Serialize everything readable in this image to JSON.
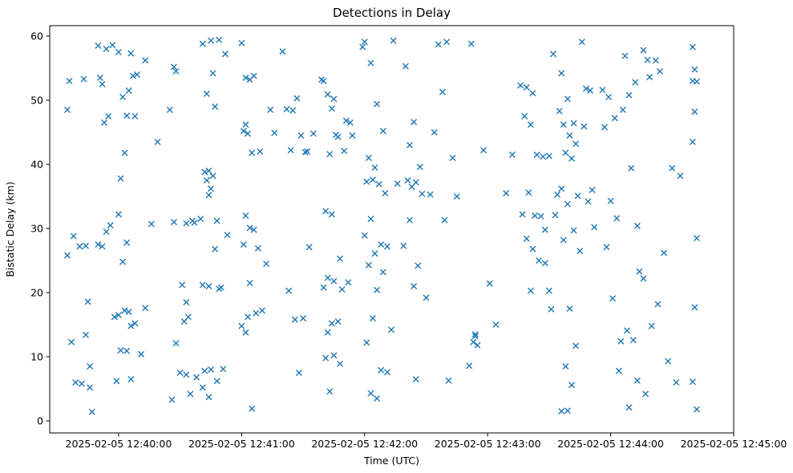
{
  "chart_data": {
    "type": "scatter",
    "title": "Detections in Delay",
    "xlabel": "Time (UTC)",
    "ylabel": "Bistatic Delay (km)",
    "marker": "x",
    "marker_color": "#1f77b4",
    "grid": false,
    "legend": "none",
    "x_axis_unit": "seconds relative to 2025-02-05 12:40:00 UTC",
    "x_lim_seconds": [
      -33.6,
      300
    ],
    "y_lim": [
      -1.875,
      61.625
    ],
    "x_ticks": [
      {
        "t": 0,
        "label": "2025-02-05 12:40:00"
      },
      {
        "t": 60,
        "label": "2025-02-05 12:41:00"
      },
      {
        "t": 120,
        "label": "2025-02-05 12:42:00"
      },
      {
        "t": 180,
        "label": "2025-02-05 12:43:00"
      },
      {
        "t": 240,
        "label": "2025-02-05 12:44:00"
      },
      {
        "t": 300,
        "label": "2025-02-05 12:45:00"
      }
    ],
    "y_ticks": [
      0,
      10,
      20,
      30,
      40,
      50,
      60
    ],
    "points": [
      [
        -25,
        48.5
      ],
      [
        -24,
        53
      ],
      [
        -25,
        25.8
      ],
      [
        -22,
        28.8
      ],
      [
        -23,
        12.3
      ],
      [
        -21,
        6
      ],
      [
        -17,
        53.3
      ],
      [
        -18,
        5.8
      ],
      [
        -15,
        18.6
      ],
      [
        -16,
        27.3
      ],
      [
        -16,
        13.4
      ],
      [
        -19,
        27.2
      ],
      [
        -14,
        8.5
      ],
      [
        -13,
        1.4
      ],
      [
        -14,
        5.2
      ],
      [
        -10,
        58.5
      ],
      [
        -6,
        58
      ],
      [
        -3,
        58.6
      ],
      [
        -8,
        52.5
      ],
      [
        -9,
        53.5
      ],
      [
        0,
        57.5
      ],
      [
        6,
        57.3
      ],
      [
        -7,
        46.5
      ],
      [
        -5,
        47.5
      ],
      [
        2,
        50.5
      ],
      [
        5,
        51.5
      ],
      [
        7,
        53.8
      ],
      [
        9,
        54
      ],
      [
        4,
        47.6
      ],
      [
        3,
        41.8
      ],
      [
        1,
        37.8
      ],
      [
        0,
        32.2
      ],
      [
        -4,
        30.5
      ],
      [
        -6,
        29.5
      ],
      [
        -10,
        27.5
      ],
      [
        -8,
        27.2
      ],
      [
        2,
        24.8
      ],
      [
        -2,
        16.2
      ],
      [
        0,
        16.5
      ],
      [
        3,
        17.2
      ],
      [
        5,
        17
      ],
      [
        6,
        14.8
      ],
      [
        8,
        15.2
      ],
      [
        1,
        11
      ],
      [
        4,
        10.9
      ],
      [
        -1,
        6.2
      ],
      [
        6,
        6.5
      ],
      [
        11,
        10.4
      ],
      [
        13,
        17.6
      ],
      [
        16,
        30.7
      ],
      [
        19,
        43.5
      ],
      [
        13,
        56.2
      ],
      [
        4,
        27.8
      ],
      [
        8,
        47.5
      ],
      [
        27,
        55.2
      ],
      [
        28,
        54.5
      ],
      [
        25,
        48.5
      ],
      [
        27,
        31
      ],
      [
        33,
        30.8
      ],
      [
        36,
        31.2
      ],
      [
        31,
        21.2
      ],
      [
        33,
        18.5
      ],
      [
        34,
        16.2
      ],
      [
        32,
        15.5
      ],
      [
        28,
        12.1
      ],
      [
        30,
        7.5
      ],
      [
        33,
        7.2
      ],
      [
        26,
        3.3
      ],
      [
        35,
        4.2
      ],
      [
        38,
        6.8
      ],
      [
        37,
        30.9
      ],
      [
        41,
        58.8
      ],
      [
        45,
        59.3
      ],
      [
        49,
        59.4
      ],
      [
        52,
        57.2
      ],
      [
        46,
        54.2
      ],
      [
        43,
        51
      ],
      [
        47,
        49
      ],
      [
        42,
        38.8
      ],
      [
        44,
        39
      ],
      [
        46,
        38.2
      ],
      [
        43,
        37.5
      ],
      [
        45,
        36.2
      ],
      [
        44,
        35.2
      ],
      [
        40,
        31.5
      ],
      [
        48,
        31.2
      ],
      [
        47,
        26.8
      ],
      [
        41,
        21.2
      ],
      [
        44,
        21
      ],
      [
        49,
        20.6
      ],
      [
        42,
        7.8
      ],
      [
        45,
        8
      ],
      [
        48,
        6.2
      ],
      [
        41,
        5.2
      ],
      [
        44,
        3.7
      ],
      [
        51,
        8.1
      ],
      [
        50,
        20.8
      ],
      [
        53,
        29
      ],
      [
        60,
        58.9
      ],
      [
        62,
        53.5
      ],
      [
        64,
        53.2
      ],
      [
        66,
        53.8
      ],
      [
        62,
        46.2
      ],
      [
        61,
        45.2
      ],
      [
        63,
        44.8
      ],
      [
        65,
        41.8
      ],
      [
        69,
        42
      ],
      [
        62,
        32
      ],
      [
        64,
        30.1
      ],
      [
        66,
        29.8
      ],
      [
        61,
        27.5
      ],
      [
        68,
        26.9
      ],
      [
        72,
        24.5
      ],
      [
        64,
        21.5
      ],
      [
        67,
        16.8
      ],
      [
        63,
        16.2
      ],
      [
        60,
        14.8
      ],
      [
        62,
        13.8
      ],
      [
        65,
        1.9
      ],
      [
        70,
        17.2
      ],
      [
        74,
        48.5
      ],
      [
        76,
        44.9
      ],
      [
        80,
        57.6
      ],
      [
        87,
        50.3
      ],
      [
        82,
        48.6
      ],
      [
        85,
        48.4
      ],
      [
        89,
        44.5
      ],
      [
        84,
        42.2
      ],
      [
        91,
        41.9
      ],
      [
        83,
        20.3
      ],
      [
        86,
        15.8
      ],
      [
        90,
        16
      ],
      [
        93,
        27.1
      ],
      [
        88,
        7.5
      ],
      [
        95,
        44.8
      ],
      [
        92,
        42
      ],
      [
        100,
        53
      ],
      [
        102,
        50.9
      ],
      [
        105,
        50.2
      ],
      [
        104,
        48.7
      ],
      [
        107,
        44.3
      ],
      [
        110,
        42.1
      ],
      [
        103,
        41.6
      ],
      [
        101,
        32.7
      ],
      [
        104,
        32.2
      ],
      [
        108,
        25.3
      ],
      [
        102,
        22.3
      ],
      [
        105,
        21.8
      ],
      [
        100,
        20.8
      ],
      [
        109,
        20.5
      ],
      [
        104,
        15.2
      ],
      [
        107,
        15.5
      ],
      [
        102,
        13.8
      ],
      [
        105,
        10.2
      ],
      [
        101,
        9.8
      ],
      [
        108,
        8.9
      ],
      [
        103,
        4.6
      ],
      [
        112,
        21.6
      ],
      [
        111,
        46.8
      ],
      [
        113,
        46.5
      ],
      [
        106,
        44.6
      ],
      [
        114,
        44.5
      ],
      [
        99,
        53.2
      ],
      [
        120,
        59.1
      ],
      [
        134,
        59.3
      ],
      [
        123,
        55.8
      ],
      [
        126,
        49.4
      ],
      [
        129,
        45.2
      ],
      [
        122,
        41
      ],
      [
        125,
        39.5
      ],
      [
        121,
        37.3
      ],
      [
        124,
        37.6
      ],
      [
        127,
        36.9
      ],
      [
        123,
        31.5
      ],
      [
        120,
        28.9
      ],
      [
        128,
        27.5
      ],
      [
        131,
        27.2
      ],
      [
        125,
        26.1
      ],
      [
        122,
        24.3
      ],
      [
        129,
        23.2
      ],
      [
        126,
        20.4
      ],
      [
        124,
        16
      ],
      [
        121,
        12.2
      ],
      [
        133,
        14.2
      ],
      [
        128,
        7.9
      ],
      [
        131,
        7.6
      ],
      [
        123,
        4.3
      ],
      [
        126,
        3.5
      ],
      [
        130,
        35.5
      ],
      [
        136,
        37
      ],
      [
        119,
        58.3
      ],
      [
        140,
        55.3
      ],
      [
        144,
        46.6
      ],
      [
        142,
        43
      ],
      [
        147,
        39.6
      ],
      [
        141,
        37.5
      ],
      [
        145,
        37.2
      ],
      [
        143,
        36.5
      ],
      [
        148,
        35.4
      ],
      [
        142,
        31.3
      ],
      [
        139,
        27.3
      ],
      [
        146,
        24.2
      ],
      [
        144,
        21
      ],
      [
        150,
        19.2
      ],
      [
        145,
        6.5
      ],
      [
        152,
        35.3
      ],
      [
        154,
        45
      ],
      [
        156,
        58.7
      ],
      [
        160,
        59.1
      ],
      [
        158,
        51.3
      ],
      [
        163,
        41
      ],
      [
        159,
        31.3
      ],
      [
        161,
        6.3
      ],
      [
        165,
        35
      ],
      [
        172,
        58.8
      ],
      [
        174,
        13.5
      ],
      [
        174,
        13.2
      ],
      [
        173,
        12.3
      ],
      [
        175,
        11.8
      ],
      [
        171,
        8.6
      ],
      [
        178,
        42.2
      ],
      [
        181,
        21.4
      ],
      [
        184,
        15
      ],
      [
        189,
        35.5
      ],
      [
        192,
        41.5
      ],
      [
        196,
        52.3
      ],
      [
        199,
        52
      ],
      [
        202,
        51.1
      ],
      [
        198,
        47.5
      ],
      [
        201,
        46.2
      ],
      [
        204,
        41.5
      ],
      [
        207,
        41.2
      ],
      [
        200,
        35.6
      ],
      [
        197,
        32.2
      ],
      [
        203,
        32
      ],
      [
        206,
        31.9
      ],
      [
        199,
        28.4
      ],
      [
        202,
        26.8
      ],
      [
        205,
        25
      ],
      [
        208,
        24.6
      ],
      [
        201,
        20.3
      ],
      [
        212,
        57.2
      ],
      [
        215,
        48.3
      ],
      [
        210,
        41.3
      ],
      [
        208,
        29.8
      ],
      [
        213,
        32.1
      ],
      [
        214,
        35.3
      ],
      [
        210,
        20.3
      ],
      [
        211,
        17.4
      ],
      [
        216,
        54.2
      ],
      [
        219,
        50.2
      ],
      [
        222,
        46.4
      ],
      [
        217,
        46.2
      ],
      [
        220,
        44.5
      ],
      [
        223,
        43.2
      ],
      [
        218,
        41.8
      ],
      [
        221,
        40.9
      ],
      [
        216,
        36.2
      ],
      [
        224,
        35.1
      ],
      [
        219,
        33.8
      ],
      [
        222,
        29.7
      ],
      [
        217,
        28.2
      ],
      [
        220,
        17.5
      ],
      [
        223,
        11.7
      ],
      [
        218,
        8.5
      ],
      [
        221,
        5.6
      ],
      [
        216,
        1.5
      ],
      [
        219,
        1.6
      ],
      [
        226,
        59.1
      ],
      [
        228,
        51.8
      ],
      [
        230,
        51.5
      ],
      [
        227,
        45.9
      ],
      [
        229,
        34.2
      ],
      [
        232,
        30.2
      ],
      [
        225,
        26.5
      ],
      [
        231,
        36
      ],
      [
        236,
        51.6
      ],
      [
        239,
        50.5
      ],
      [
        242,
        47.2
      ],
      [
        237,
        45.8
      ],
      [
        240,
        34.3
      ],
      [
        243,
        31.6
      ],
      [
        238,
        27.1
      ],
      [
        241,
        19.1
      ],
      [
        244,
        7.8
      ],
      [
        247,
        56.9
      ],
      [
        249,
        50.8
      ],
      [
        252,
        52.8
      ],
      [
        246,
        48.5
      ],
      [
        250,
        39.4
      ],
      [
        253,
        30.4
      ],
      [
        248,
        14.1
      ],
      [
        251,
        12.6
      ],
      [
        245,
        12.4
      ],
      [
        254,
        23.3
      ],
      [
        249,
        2.1
      ],
      [
        253,
        6.3
      ],
      [
        256,
        57.8
      ],
      [
        258,
        56.3
      ],
      [
        262,
        56.2
      ],
      [
        259,
        53.6
      ],
      [
        264,
        54.5
      ],
      [
        256,
        22.2
      ],
      [
        260,
        14.8
      ],
      [
        257,
        4.2
      ],
      [
        266,
        26.2
      ],
      [
        268,
        9.3
      ],
      [
        270,
        39.4
      ],
      [
        272,
        6
      ],
      [
        274,
        38.2
      ],
      [
        263,
        18.2
      ],
      [
        280,
        58.3
      ],
      [
        281,
        54.8
      ],
      [
        280,
        53
      ],
      [
        282,
        52.9
      ],
      [
        281,
        48.2
      ],
      [
        280,
        43.5
      ],
      [
        282,
        28.5
      ],
      [
        281,
        17.7
      ],
      [
        280,
        6.1
      ],
      [
        282,
        1.8
      ]
    ]
  }
}
